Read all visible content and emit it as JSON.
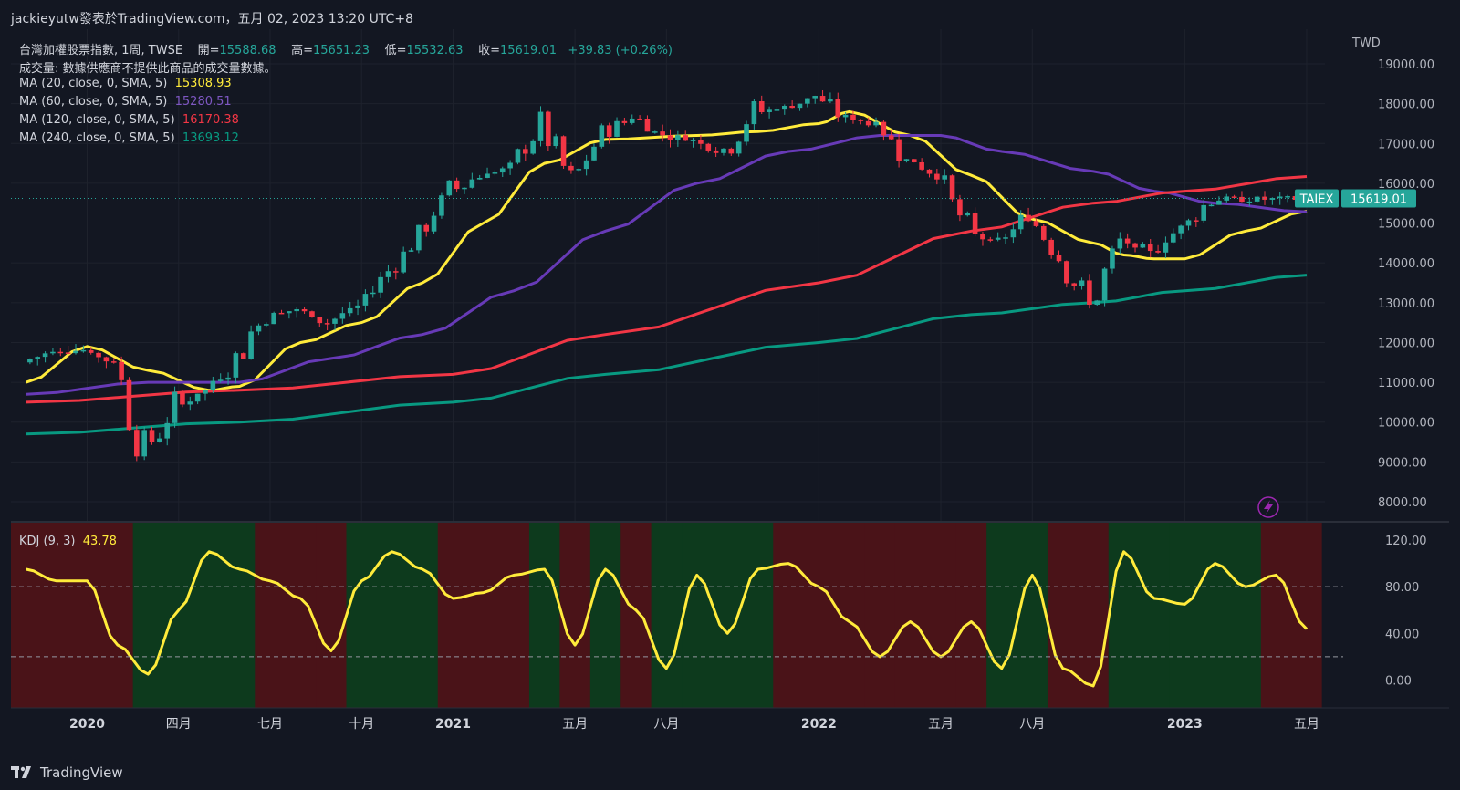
{
  "header": {
    "attribution": "jackieyutw發表於TradingView.com，五月 02, 2023 13:20 UTC+8"
  },
  "legend": {
    "symbol_line": {
      "title": "台灣加權股票指數, 1周, TWSE",
      "open_label": "開=",
      "open": "15588.68",
      "high_label": "高=",
      "high": "15651.23",
      "low_label": "低=",
      "low": "15532.63",
      "close_label": "收=",
      "close": "15619.01",
      "change": "+39.83 (+0.26%)"
    },
    "volume_line": "成交量: 數據供應商不提供此商品的成交量數據。",
    "ma": [
      {
        "label": "MA (20, close, 0, SMA, 5)",
        "value": "15308.93",
        "color": "#ffeb3b"
      },
      {
        "label": "MA (60, close, 0, SMA, 5)",
        "value": "15280.51",
        "color": "#673ab7"
      },
      {
        "label": "MA (120, close, 0, SMA, 5)",
        "value": "16170.38",
        "color": "#f23645"
      },
      {
        "label": "MA (240, close, 0, SMA, 5)",
        "value": "13693.12",
        "color": "#089981"
      }
    ]
  },
  "price_axis": {
    "currency": "TWD",
    "ticks": [
      "19000.00",
      "18000.00",
      "17000.00",
      "16000.00",
      "15000.00",
      "14000.00",
      "13000.00",
      "12000.00",
      "11000.00",
      "10000.00",
      "9000.00",
      "8000.00"
    ],
    "symbol_tag": "TAIEX",
    "last_price": "15619.01"
  },
  "kdj": {
    "label": "KDJ (9, 3)",
    "value": "43.78",
    "ticks": [
      "120.00",
      "80.00",
      "40.00",
      "0.00"
    ]
  },
  "time_axis": {
    "labels": [
      "2020",
      "四月",
      "七月",
      "十月",
      "2021",
      "五月",
      "八月",
      "2022",
      "五月",
      "八月",
      "2023",
      "五月"
    ]
  },
  "footer": {
    "brand": "TradingView"
  },
  "colors": {
    "background": "#131722",
    "up": "#26a69a",
    "down": "#f23645",
    "ma20": "#ffeb3b",
    "ma60": "#673ab7",
    "ma120": "#f23645",
    "ma240": "#089981",
    "kdj": "#ffeb3b",
    "kdj_bull_bg": "#0d3a1d",
    "kdj_bear_bg": "#4a1318"
  },
  "chart_data": {
    "type": "candlestick",
    "instrument": "台灣加權股票指數",
    "interval": "1周",
    "x_range": [
      "2019-11",
      "2023-05"
    ],
    "ylim": [
      8000,
      19000
    ],
    "price_anchors": [
      {
        "date": "2019-11",
        "close": 11500
      },
      {
        "date": "2019-12",
        "close": 11800
      },
      {
        "date": "2020-01",
        "close": 11800
      },
      {
        "date": "2020-02",
        "close": 11500
      },
      {
        "date": "2020-03",
        "close": 9200
      },
      {
        "date": "2020-04",
        "close": 10400
      },
      {
        "date": "2020-05",
        "close": 10800
      },
      {
        "date": "2020-06",
        "close": 11600
      },
      {
        "date": "2020-07",
        "close": 12800
      },
      {
        "date": "2020-08",
        "close": 12800
      },
      {
        "date": "2020-09",
        "close": 12500
      },
      {
        "date": "2020-10",
        "close": 12900
      },
      {
        "date": "2020-11",
        "close": 13800
      },
      {
        "date": "2020-12",
        "close": 14700
      },
      {
        "date": "2021-01",
        "close": 15800
      },
      {
        "date": "2021-02",
        "close": 16200
      },
      {
        "date": "2021-03",
        "close": 16400
      },
      {
        "date": "2021-04",
        "close": 17500
      },
      {
        "date": "2021-05",
        "close": 16000
      },
      {
        "date": "2021-06",
        "close": 17200
      },
      {
        "date": "2021-07",
        "close": 17700
      },
      {
        "date": "2021-08",
        "close": 17200
      },
      {
        "date": "2021-09",
        "close": 17100
      },
      {
        "date": "2021-10",
        "close": 16800
      },
      {
        "date": "2021-11",
        "close": 17800
      },
      {
        "date": "2021-12",
        "close": 17900
      },
      {
        "date": "2022-01",
        "close": 18200
      },
      {
        "date": "2022-02",
        "close": 17600
      },
      {
        "date": "2022-03",
        "close": 17500
      },
      {
        "date": "2022-04",
        "close": 16600
      },
      {
        "date": "2022-05",
        "close": 16200
      },
      {
        "date": "2022-06",
        "close": 14800
      },
      {
        "date": "2022-07",
        "close": 14500
      },
      {
        "date": "2022-08",
        "close": 15200
      },
      {
        "date": "2022-09",
        "close": 14200
      },
      {
        "date": "2022-10",
        "close": 12900
      },
      {
        "date": "2022-11",
        "close": 14500
      },
      {
        "date": "2022-12",
        "close": 14300
      },
      {
        "date": "2023-01",
        "close": 14900
      },
      {
        "date": "2023-02",
        "close": 15600
      },
      {
        "date": "2023-03",
        "close": 15600
      },
      {
        "date": "2023-04",
        "close": 15600
      },
      {
        "date": "2023-05",
        "close": 15619
      }
    ],
    "ma_anchors": {
      "MA20": [
        [
          "2019-11",
          11000
        ],
        [
          "2020-01",
          11900
        ],
        [
          "2020-03",
          11300
        ],
        [
          "2020-05",
          10800
        ],
        [
          "2020-06",
          10900
        ],
        [
          "2020-08",
          12000
        ],
        [
          "2020-10",
          12500
        ],
        [
          "2020-12",
          13500
        ],
        [
          "2021-02",
          15000
        ],
        [
          "2021-04",
          16500
        ],
        [
          "2021-06",
          17100
        ],
        [
          "2021-09",
          17200
        ],
        [
          "2021-11",
          17300
        ],
        [
          "2022-01",
          17500
        ],
        [
          "2022-02",
          17800
        ],
        [
          "2022-04",
          17200
        ],
        [
          "2022-06",
          16200
        ],
        [
          "2022-08",
          15100
        ],
        [
          "2022-10",
          14500
        ],
        [
          "2022-11",
          14200
        ],
        [
          "2022-12",
          14100
        ],
        [
          "2023-01",
          14100
        ],
        [
          "2023-03",
          14800
        ],
        [
          "2023-05",
          15300
        ]
      ],
      "MA60": [
        [
          "2019-11",
          10700
        ],
        [
          "2020-03",
          11000
        ],
        [
          "2020-06",
          11000
        ],
        [
          "2020-09",
          11600
        ],
        [
          "2020-12",
          12200
        ],
        [
          "2021-03",
          13300
        ],
        [
          "2021-06",
          14800
        ],
        [
          "2021-09",
          16000
        ],
        [
          "2021-12",
          16800
        ],
        [
          "2022-03",
          17200
        ],
        [
          "2022-05",
          17200
        ],
        [
          "2022-07",
          16800
        ],
        [
          "2022-10",
          16300
        ],
        [
          "2022-12",
          15800
        ],
        [
          "2023-02",
          15500
        ],
        [
          "2023-05",
          15280
        ]
      ],
      "MA120": [
        [
          "2019-11",
          10500
        ],
        [
          "2020-06",
          10800
        ],
        [
          "2021-01",
          11200
        ],
        [
          "2021-06",
          12200
        ],
        [
          "2022-01",
          13500
        ],
        [
          "2022-06",
          14800
        ],
        [
          "2022-10",
          15500
        ],
        [
          "2023-01",
          15800
        ],
        [
          "2023-05",
          16170
        ]
      ],
      "MA240": [
        [
          "2019-11",
          9700
        ],
        [
          "2020-06",
          10000
        ],
        [
          "2021-01",
          10500
        ],
        [
          "2021-06",
          11200
        ],
        [
          "2022-01",
          12000
        ],
        [
          "2022-06",
          12700
        ],
        [
          "2022-10",
          13000
        ],
        [
          "2023-01",
          13300
        ],
        [
          "2023-05",
          13693
        ]
      ]
    },
    "kdj": {
      "ylim": [
        -30,
        135
      ],
      "reference_lines": [
        80,
        20
      ],
      "anchors": [
        [
          "2019-11",
          95
        ],
        [
          "2019-12",
          85
        ],
        [
          "2020-01",
          85
        ],
        [
          "2020-02",
          30
        ],
        [
          "2020-03",
          5
        ],
        [
          "2020-04",
          60
        ],
        [
          "2020-05",
          110
        ],
        [
          "2020-06",
          95
        ],
        [
          "2020-07",
          85
        ],
        [
          "2020-08",
          70
        ],
        [
          "2020-09",
          25
        ],
        [
          "2020-10",
          85
        ],
        [
          "2020-11",
          110
        ],
        [
          "2020-12",
          95
        ],
        [
          "2021-01",
          70
        ],
        [
          "2021-02",
          75
        ],
        [
          "2021-03",
          90
        ],
        [
          "2021-04",
          95
        ],
        [
          "2021-05",
          30
        ],
        [
          "2021-06",
          95
        ],
        [
          "2021-07",
          60
        ],
        [
          "2021-08",
          10
        ],
        [
          "2021-09",
          90
        ],
        [
          "2021-10",
          40
        ],
        [
          "2021-11",
          95
        ],
        [
          "2021-12",
          100
        ],
        [
          "2022-01",
          80
        ],
        [
          "2022-02",
          50
        ],
        [
          "2022-03",
          20
        ],
        [
          "2022-04",
          50
        ],
        [
          "2022-05",
          20
        ],
        [
          "2022-06",
          50
        ],
        [
          "2022-07",
          10
        ],
        [
          "2022-08",
          90
        ],
        [
          "2022-09",
          10
        ],
        [
          "2022-10",
          -5
        ],
        [
          "2022-11",
          110
        ],
        [
          "2022-12",
          70
        ],
        [
          "2023-01",
          65
        ],
        [
          "2023-02",
          100
        ],
        [
          "2023-03",
          80
        ],
        [
          "2023-04",
          90
        ],
        [
          "2023-05",
          43.78
        ]
      ],
      "regimes": [
        [
          "2019-11",
          "2019-11",
          "bear"
        ],
        [
          "2019-11",
          "2020-03",
          "bear"
        ],
        [
          "2020-03",
          "2020-07",
          "bull"
        ],
        [
          "2020-07",
          "2020-09",
          "bear"
        ],
        [
          "2020-09",
          "2020-10",
          "bear"
        ],
        [
          "2020-10",
          "2021-01",
          "bull"
        ],
        [
          "2021-01",
          "2021-04",
          "bear"
        ],
        [
          "2021-04",
          "2021-05",
          "bull"
        ],
        [
          "2021-05",
          "2021-06",
          "bear"
        ],
        [
          "2021-06",
          "2021-07",
          "bull"
        ],
        [
          "2021-07",
          "2021-08",
          "bear"
        ],
        [
          "2021-08",
          "2021-09",
          "bull"
        ],
        [
          "2021-09",
          "2021-12",
          "bull"
        ],
        [
          "2021-12",
          "2022-03",
          "bear"
        ],
        [
          "2022-03",
          "2022-04",
          "bear"
        ],
        [
          "2022-04",
          "2022-06",
          "bear"
        ],
        [
          "2022-06",
          "2022-07",
          "bear"
        ],
        [
          "2022-07",
          "2022-08",
          "bull"
        ],
        [
          "2022-08",
          "2022-09",
          "bull"
        ],
        [
          "2022-09",
          "2022-11",
          "bear"
        ],
        [
          "2022-11",
          "2023-01",
          "bull"
        ],
        [
          "2023-01",
          "2023-04",
          "bull"
        ],
        [
          "2023-04",
          "2023-05",
          "bear"
        ]
      ]
    },
    "last_close": 15619.01,
    "title": "台灣加權股票指數, 1周, TWSE",
    "legend_position": "top-left",
    "grid": true
  }
}
